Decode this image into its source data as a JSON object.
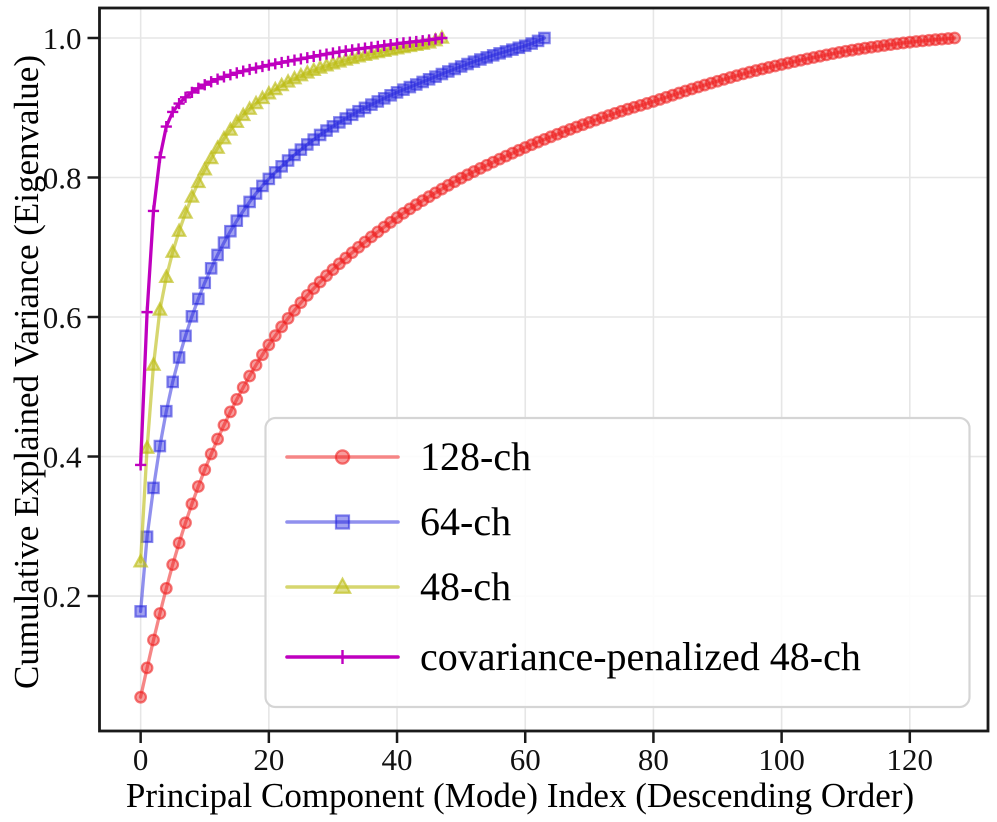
{
  "figure": {
    "background": "#ffffff",
    "grid_color": "#e6e6e6",
    "spine_color": "#1a1a1a",
    "text_color": "#000000"
  },
  "chart_data": {
    "type": "line",
    "title": "",
    "xlabel": "Principal Component (Mode) Index (Descending Order)",
    "ylabel": "Cumulative Explained Variance (Eigenvalue)",
    "x_ticks": [
      0,
      20,
      40,
      60,
      80,
      100,
      120
    ],
    "y_ticks": [
      0.2,
      0.4,
      0.6,
      0.8,
      1.0
    ],
    "xlim": [
      -6.42,
      132.2
    ],
    "ylim": [
      0.0065,
      1.043
    ],
    "grid": true,
    "legend_position": "lower right inside axes",
    "series": [
      {
        "name": "128-ch",
        "marker": "circle",
        "color": "#ee2222",
        "line_alpha": 0.55,
        "marker_fill_alpha": 0.45,
        "marker_edge_alpha": 0.6,
        "n_points": 128,
        "x_step": 1,
        "anchors": [
          [
            0,
            0.055
          ],
          [
            1,
            0.097
          ],
          [
            2,
            0.137
          ],
          [
            3,
            0.175
          ],
          [
            4,
            0.211
          ],
          [
            5,
            0.245
          ],
          [
            6,
            0.276
          ],
          [
            7,
            0.305
          ],
          [
            8,
            0.332
          ],
          [
            9,
            0.357
          ],
          [
            10,
            0.381
          ],
          [
            12,
            0.425
          ],
          [
            14,
            0.464
          ],
          [
            16,
            0.499
          ],
          [
            18,
            0.531
          ],
          [
            20,
            0.56
          ],
          [
            23,
            0.598
          ],
          [
            26,
            0.631
          ],
          [
            30,
            0.668
          ],
          [
            34,
            0.7
          ],
          [
            38,
            0.729
          ],
          [
            42,
            0.755
          ],
          [
            46,
            0.778
          ],
          [
            50,
            0.799
          ],
          [
            55,
            0.822
          ],
          [
            60,
            0.843
          ],
          [
            65,
            0.862
          ],
          [
            70,
            0.879
          ],
          [
            75,
            0.895
          ],
          [
            80,
            0.909
          ],
          [
            85,
            0.924
          ],
          [
            90,
            0.938
          ],
          [
            95,
            0.951
          ],
          [
            100,
            0.962
          ],
          [
            105,
            0.972
          ],
          [
            110,
            0.981
          ],
          [
            115,
            0.988
          ],
          [
            120,
            0.994
          ],
          [
            127,
            1.0
          ]
        ]
      },
      {
        "name": "64-ch",
        "marker": "square",
        "color": "#2222dd",
        "line_alpha": 0.5,
        "marker_fill_alpha": 0.42,
        "marker_edge_alpha": 0.55,
        "n_points": 64,
        "x_step": 1,
        "anchors": [
          [
            0,
            0.178
          ],
          [
            1,
            0.285
          ],
          [
            2,
            0.355
          ],
          [
            3,
            0.415
          ],
          [
            4,
            0.465
          ],
          [
            5,
            0.507
          ],
          [
            6,
            0.542
          ],
          [
            7,
            0.573
          ],
          [
            8,
            0.601
          ],
          [
            9,
            0.626
          ],
          [
            10,
            0.649
          ],
          [
            12,
            0.689
          ],
          [
            14,
            0.723
          ],
          [
            16,
            0.752
          ],
          [
            18,
            0.777
          ],
          [
            20,
            0.798
          ],
          [
            22,
            0.816
          ],
          [
            25,
            0.84
          ],
          [
            28,
            0.861
          ],
          [
            31,
            0.879
          ],
          [
            34,
            0.895
          ],
          [
            37,
            0.909
          ],
          [
            40,
            0.922
          ],
          [
            44,
            0.937
          ],
          [
            48,
            0.952
          ],
          [
            52,
            0.966
          ],
          [
            56,
            0.978
          ],
          [
            59,
            0.986
          ],
          [
            61,
            0.992
          ],
          [
            63,
            1.0
          ]
        ]
      },
      {
        "name": "48-ch",
        "marker": "triangle",
        "color": "#bdbd17",
        "line_alpha": 0.62,
        "marker_fill_alpha": 0.5,
        "marker_edge_alpha": 0.65,
        "n_points": 48,
        "x_step": 1,
        "anchors": [
          [
            0,
            0.249
          ],
          [
            1,
            0.412
          ],
          [
            2,
            0.531
          ],
          [
            3,
            0.61
          ],
          [
            4,
            0.657
          ],
          [
            5,
            0.693
          ],
          [
            6,
            0.723
          ],
          [
            7,
            0.749
          ],
          [
            8,
            0.772
          ],
          [
            9,
            0.793
          ],
          [
            10,
            0.811
          ],
          [
            12,
            0.842
          ],
          [
            14,
            0.868
          ],
          [
            16,
            0.889
          ],
          [
            18,
            0.906
          ],
          [
            20,
            0.92
          ],
          [
            23,
            0.937
          ],
          [
            26,
            0.95
          ],
          [
            30,
            0.963
          ],
          [
            34,
            0.973
          ],
          [
            38,
            0.981
          ],
          [
            42,
            0.988
          ],
          [
            45,
            0.993
          ],
          [
            47,
            1.0
          ]
        ]
      },
      {
        "name": "covariance-penalized 48-ch",
        "marker": "plus",
        "color": "#bf00bf",
        "line_alpha": 1.0,
        "marker_fill_alpha": 1.0,
        "marker_edge_alpha": 1.0,
        "n_points": 48,
        "x_step": 1,
        "anchors": [
          [
            0,
            0.388
          ],
          [
            1,
            0.607
          ],
          [
            2,
            0.752
          ],
          [
            3,
            0.829
          ],
          [
            4,
            0.873
          ],
          [
            5,
            0.894
          ],
          [
            6,
            0.906
          ],
          [
            7,
            0.915
          ],
          [
            8,
            0.922
          ],
          [
            10,
            0.933
          ],
          [
            12,
            0.941
          ],
          [
            15,
            0.95
          ],
          [
            18,
            0.957
          ],
          [
            21,
            0.963
          ],
          [
            25,
            0.97
          ],
          [
            29,
            0.977
          ],
          [
            33,
            0.983
          ],
          [
            37,
            0.988
          ],
          [
            41,
            0.993
          ],
          [
            44,
            0.996
          ],
          [
            47,
            1.0
          ]
        ]
      }
    ]
  }
}
